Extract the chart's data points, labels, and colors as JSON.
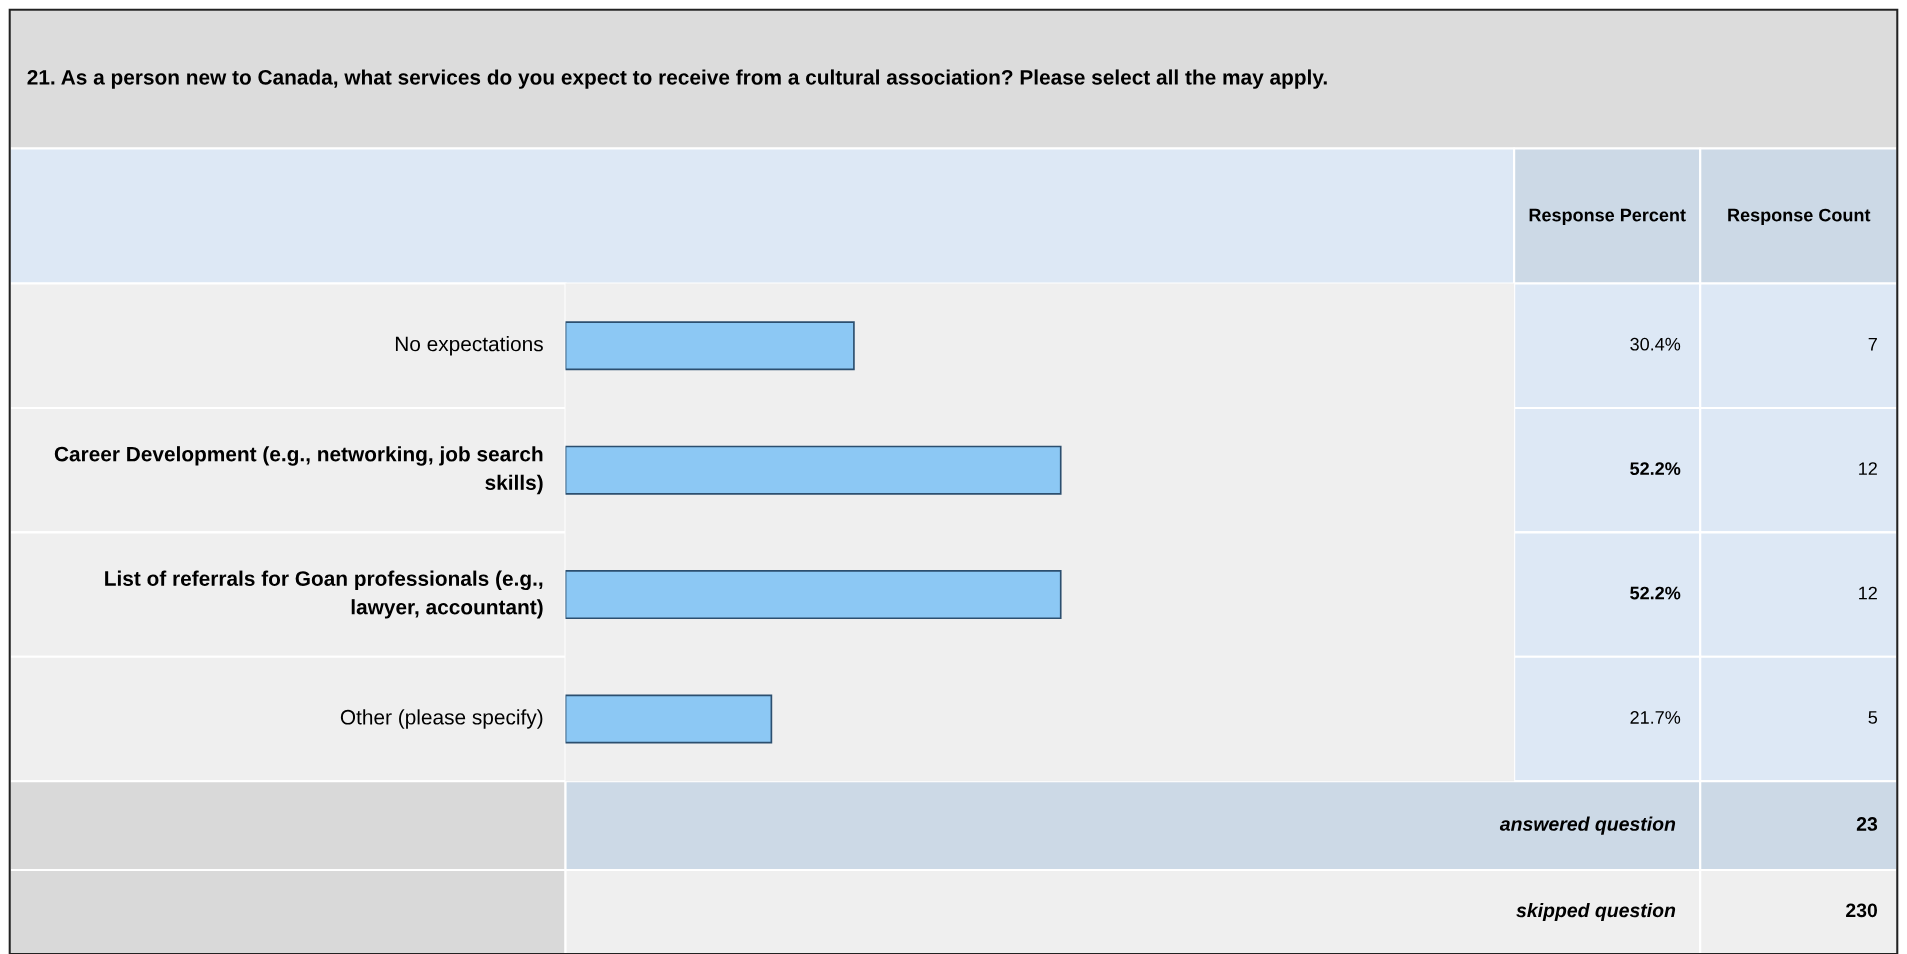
{
  "chart_data": {
    "type": "bar",
    "orientation": "horizontal",
    "title": "21. As a person new to Canada, what services do you expect to receive from a cultural association? Please select all the may apply.",
    "categories": [
      "No expectations",
      "Career Development (e.g., networking, job search skills)",
      "List of referrals for Goan professionals (e.g., lawyer, accountant)",
      "Other (please specify)"
    ],
    "values": [
      30.4,
      52.2,
      52.2,
      21.7
    ],
    "value_labels": [
      "30.4%",
      "52.2%",
      "52.2%",
      "21.7%"
    ],
    "color": "#8cc8f4",
    "xlim": [
      0,
      100
    ],
    "tick_labels": "y",
    "annotations": [
      "Response Percent",
      "Response Count",
      "7",
      "12",
      "12",
      "5",
      "answered question",
      "23",
      "skipped question",
      "230"
    ]
  }
}
